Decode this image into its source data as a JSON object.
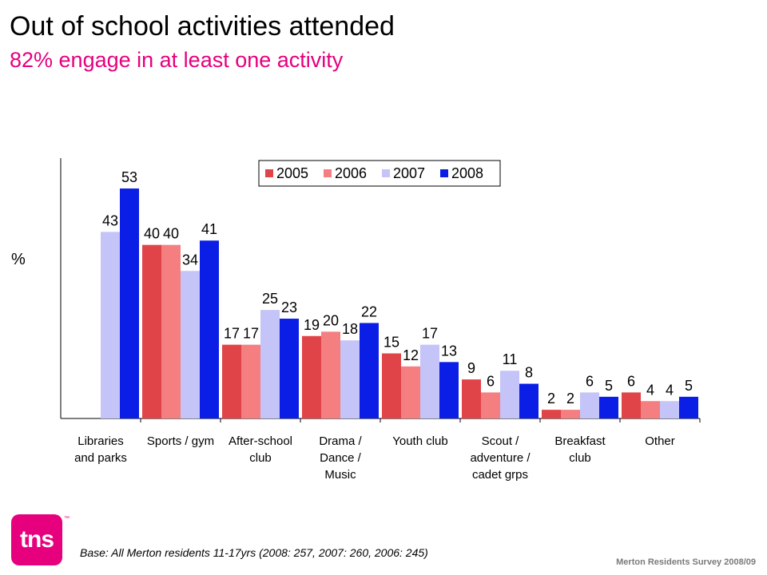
{
  "title": "Out of school activities attended",
  "subtitle": "82% engage in at least one activity",
  "base_note": "Base:  All Merton residents 11-17yrs (2008: 257, 2007: 260, 2006: 245)",
  "footer": "Merton Residents Survey 2008/09",
  "logo": {
    "text": "tns",
    "mark": "™"
  },
  "colors": {
    "subtitle": "#e6007e",
    "series": [
      "#e04448",
      "#f47e80",
      "#c4c4f8",
      "#0a1ee6"
    ]
  },
  "chart_data": {
    "type": "bar",
    "ylabel": "%",
    "ylim": [
      0,
      60
    ],
    "legend_position": "top-right",
    "categories": [
      [
        "Libraries",
        "and parks"
      ],
      [
        "Sports / gym"
      ],
      [
        "After-school",
        "club"
      ],
      [
        "Drama /",
        "Dance /",
        "Music"
      ],
      [
        "Youth club"
      ],
      [
        "Scout /",
        "adventure /",
        "cadet grps"
      ],
      [
        "Breakfast",
        "club"
      ],
      [
        "Other"
      ]
    ],
    "series": [
      {
        "name": "2005",
        "values": [
          null,
          40,
          17,
          19,
          15,
          9,
          2,
          6
        ]
      },
      {
        "name": "2006",
        "values": [
          null,
          40,
          17,
          20,
          12,
          6,
          2,
          4
        ]
      },
      {
        "name": "2007",
        "values": [
          43,
          34,
          25,
          18,
          17,
          11,
          6,
          4
        ]
      },
      {
        "name": "2008",
        "values": [
          53,
          41,
          23,
          22,
          13,
          8,
          5,
          5
        ]
      }
    ]
  }
}
